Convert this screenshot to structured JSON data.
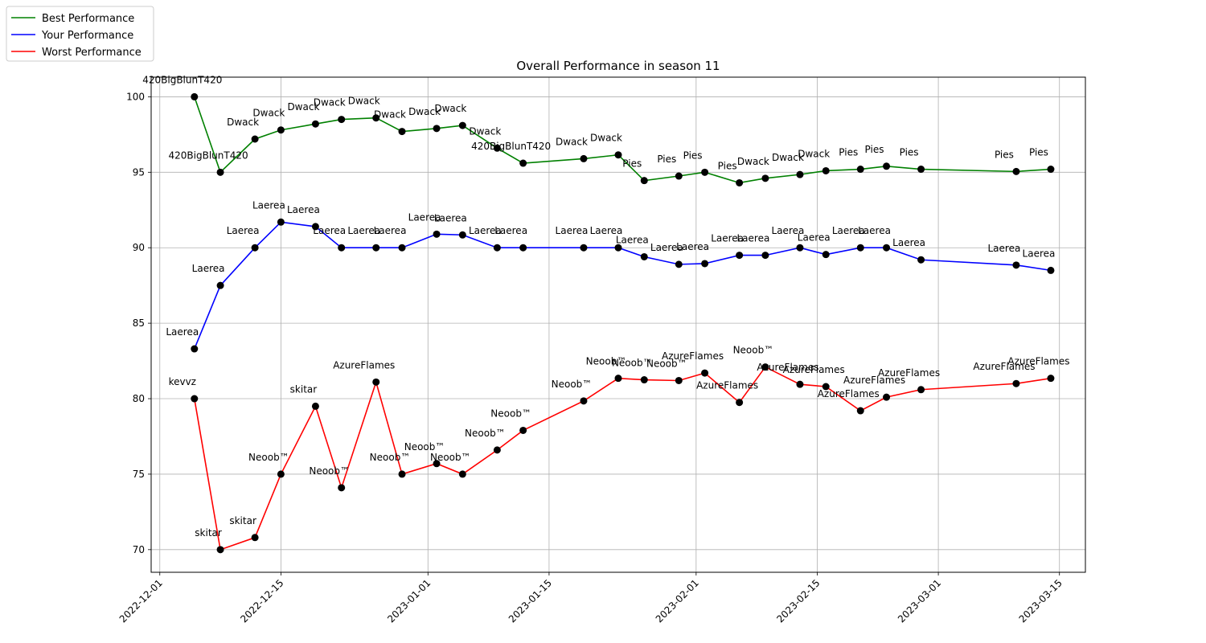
{
  "chart_data": {
    "type": "line",
    "title": "Overall Performance in season 11",
    "xlabel": "",
    "ylabel": "",
    "x_type": "date",
    "xlim": [
      "2022-11-30",
      "2023-03-18"
    ],
    "ylim": [
      68.5,
      101.3
    ],
    "x_ticks": [
      "2022-12-01",
      "2022-12-15",
      "2023-01-01",
      "2023-01-15",
      "2023-02-01",
      "2023-02-15",
      "2023-03-01",
      "2023-03-15"
    ],
    "y_ticks": [
      70,
      75,
      80,
      85,
      90,
      95,
      100
    ],
    "grid": true,
    "legend_position": "top-left",
    "series": [
      {
        "name": "Best Performance",
        "color": "#008000",
        "points": [
          {
            "x": "2022-12-05",
            "y": 100.0,
            "label": "420BigBlunT420"
          },
          {
            "x": "2022-12-08",
            "y": 95.0,
            "label": "420BigBlunT420"
          },
          {
            "x": "2022-12-12",
            "y": 97.2,
            "label": "Dwack"
          },
          {
            "x": "2022-12-15",
            "y": 97.8,
            "label": "Dwack"
          },
          {
            "x": "2022-12-19",
            "y": 98.2,
            "label": "Dwack"
          },
          {
            "x": "2022-12-22",
            "y": 98.5,
            "label": "Dwack"
          },
          {
            "x": "2022-12-26",
            "y": 98.6,
            "label": "Dwack"
          },
          {
            "x": "2022-12-29",
            "y": 97.7,
            "label": "Dwack"
          },
          {
            "x": "2023-01-02",
            "y": 97.9,
            "label": "Dwack"
          },
          {
            "x": "2023-01-05",
            "y": 98.1,
            "label": "Dwack"
          },
          {
            "x": "2023-01-09",
            "y": 96.6,
            "label": "Dwack"
          },
          {
            "x": "2023-01-12",
            "y": 95.6,
            "label": "420BigBlunT420"
          },
          {
            "x": "2023-01-19",
            "y": 95.9,
            "label": "Dwack"
          },
          {
            "x": "2023-01-23",
            "y": 96.15,
            "label": "Dwack"
          },
          {
            "x": "2023-01-26",
            "y": 94.45,
            "label": "Pies"
          },
          {
            "x": "2023-01-30",
            "y": 94.75,
            "label": "Pies"
          },
          {
            "x": "2023-02-02",
            "y": 95.0,
            "label": "Pies"
          },
          {
            "x": "2023-02-06",
            "y": 94.3,
            "label": "Pies"
          },
          {
            "x": "2023-02-09",
            "y": 94.6,
            "label": "Dwack"
          },
          {
            "x": "2023-02-13",
            "y": 94.85,
            "label": "Dwack"
          },
          {
            "x": "2023-02-16",
            "y": 95.1,
            "label": "Dwack"
          },
          {
            "x": "2023-02-20",
            "y": 95.2,
            "label": "Pies"
          },
          {
            "x": "2023-02-23",
            "y": 95.4,
            "label": "Pies"
          },
          {
            "x": "2023-02-27",
            "y": 95.2,
            "label": "Pies"
          },
          {
            "x": "2023-03-10",
            "y": 95.05,
            "label": "Pies"
          },
          {
            "x": "2023-03-14",
            "y": 95.2,
            "label": "Pies"
          }
        ]
      },
      {
        "name": "Your Performance",
        "color": "#0000ff",
        "points": [
          {
            "x": "2022-12-05",
            "y": 83.3,
            "label": "Laerea"
          },
          {
            "x": "2022-12-08",
            "y": 87.5,
            "label": "Laerea"
          },
          {
            "x": "2022-12-12",
            "y": 90.0,
            "label": "Laerea"
          },
          {
            "x": "2022-12-15",
            "y": 91.7,
            "label": "Laerea"
          },
          {
            "x": "2022-12-19",
            "y": 91.4,
            "label": "Laerea"
          },
          {
            "x": "2022-12-22",
            "y": 90.0,
            "label": "Laerea"
          },
          {
            "x": "2022-12-26",
            "y": 90.0,
            "label": "Laerea"
          },
          {
            "x": "2022-12-29",
            "y": 90.0,
            "label": "Laerea"
          },
          {
            "x": "2023-01-02",
            "y": 90.9,
            "label": "Laerea"
          },
          {
            "x": "2023-01-05",
            "y": 90.85,
            "label": "Laerea"
          },
          {
            "x": "2023-01-09",
            "y": 90.0,
            "label": "Laerea"
          },
          {
            "x": "2023-01-12",
            "y": 90.0,
            "label": "Laerea"
          },
          {
            "x": "2023-01-19",
            "y": 90.0,
            "label": "Laerea"
          },
          {
            "x": "2023-01-23",
            "y": 90.0,
            "label": "Laerea"
          },
          {
            "x": "2023-01-26",
            "y": 89.4,
            "label": "Laerea"
          },
          {
            "x": "2023-01-30",
            "y": 88.9,
            "label": "Laerea"
          },
          {
            "x": "2023-02-02",
            "y": 88.95,
            "label": "Laerea"
          },
          {
            "x": "2023-02-06",
            "y": 89.5,
            "label": "Laerea"
          },
          {
            "x": "2023-02-09",
            "y": 89.5,
            "label": "Laerea"
          },
          {
            "x": "2023-02-13",
            "y": 90.0,
            "label": "Laerea"
          },
          {
            "x": "2023-02-16",
            "y": 89.55,
            "label": "Laerea"
          },
          {
            "x": "2023-02-20",
            "y": 90.0,
            "label": "Laerea"
          },
          {
            "x": "2023-02-23",
            "y": 90.0,
            "label": "Laerea"
          },
          {
            "x": "2023-02-27",
            "y": 89.2,
            "label": "Laerea"
          },
          {
            "x": "2023-03-10",
            "y": 88.85,
            "label": "Laerea"
          },
          {
            "x": "2023-03-14",
            "y": 88.5,
            "label": "Laerea"
          }
        ]
      },
      {
        "name": "Worst Performance",
        "color": "#ff0000",
        "points": [
          {
            "x": "2022-12-05",
            "y": 80.0,
            "label": "kevvz"
          },
          {
            "x": "2022-12-08",
            "y": 70.0,
            "label": "skitar"
          },
          {
            "x": "2022-12-12",
            "y": 70.8,
            "label": "skitar"
          },
          {
            "x": "2022-12-15",
            "y": 75.0,
            "label": "Neoob™"
          },
          {
            "x": "2022-12-19",
            "y": 79.5,
            "label": "skitar"
          },
          {
            "x": "2022-12-22",
            "y": 74.1,
            "label": "Neoob™"
          },
          {
            "x": "2022-12-26",
            "y": 81.1,
            "label": "AzureFlames"
          },
          {
            "x": "2022-12-29",
            "y": 75.0,
            "label": "Neoob™"
          },
          {
            "x": "2023-01-02",
            "y": 75.7,
            "label": "Neoob™"
          },
          {
            "x": "2023-01-05",
            "y": 75.0,
            "label": "Neoob™"
          },
          {
            "x": "2023-01-09",
            "y": 76.6,
            "label": "Neoob™"
          },
          {
            "x": "2023-01-12",
            "y": 77.9,
            "label": "Neoob™"
          },
          {
            "x": "2023-01-19",
            "y": 79.85,
            "label": "Neoob™"
          },
          {
            "x": "2023-01-23",
            "y": 81.35,
            "label": "Neoob™"
          },
          {
            "x": "2023-01-26",
            "y": 81.25,
            "label": "Neoob™"
          },
          {
            "x": "2023-01-30",
            "y": 81.2,
            "label": "Neoob™"
          },
          {
            "x": "2023-02-02",
            "y": 81.7,
            "label": "AzureFlames"
          },
          {
            "x": "2023-02-06",
            "y": 79.75,
            "label": "AzureFlames"
          },
          {
            "x": "2023-02-09",
            "y": 82.1,
            "label": "Neoob™"
          },
          {
            "x": "2023-02-13",
            "y": 80.95,
            "label": "AzureFlames"
          },
          {
            "x": "2023-02-16",
            "y": 80.8,
            "label": "AzureFlames"
          },
          {
            "x": "2023-02-20",
            "y": 79.2,
            "label": "AzureFlames"
          },
          {
            "x": "2023-02-23",
            "y": 80.1,
            "label": "AzureFlames"
          },
          {
            "x": "2023-02-27",
            "y": 80.6,
            "label": "AzureFlames"
          },
          {
            "x": "2023-03-10",
            "y": 81.0,
            "label": "AzureFlames"
          },
          {
            "x": "2023-03-14",
            "y": 81.35,
            "label": "AzureFlames"
          }
        ]
      }
    ]
  }
}
